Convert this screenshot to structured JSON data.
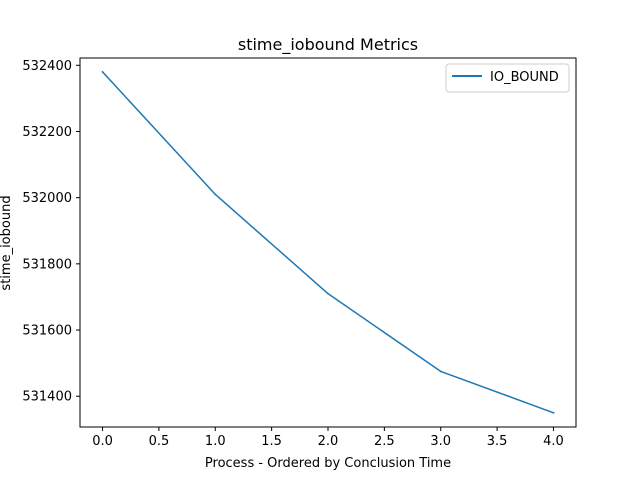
{
  "chart_data": {
    "type": "line",
    "title": "stime_iobound Metrics",
    "xlabel": "Process - Ordered by Conclusion Time",
    "ylabel": "stime_iobound",
    "xlim": [
      -0.2,
      4.2
    ],
    "ylim": [
      531307,
      532422
    ],
    "x_ticks": [
      0.0,
      0.5,
      1.0,
      1.5,
      2.0,
      2.5,
      3.0,
      3.5,
      4.0
    ],
    "x_tick_labels": [
      "0.0",
      "0.5",
      "1.0",
      "1.5",
      "2.0",
      "2.5",
      "3.0",
      "3.5",
      "4.0"
    ],
    "y_ticks": [
      531400,
      531600,
      531800,
      532000,
      532200,
      532400
    ],
    "y_tick_labels": [
      "531400",
      "531600",
      "531800",
      "532000",
      "532200",
      "532400"
    ],
    "grid": false,
    "legend": "upper right",
    "series": [
      {
        "name": "IO_BOUND",
        "color": "#1f77b4",
        "x": [
          0,
          1,
          2,
          3,
          4
        ],
        "y": [
          532380,
          532010,
          531710,
          531475,
          531350
        ]
      }
    ]
  }
}
